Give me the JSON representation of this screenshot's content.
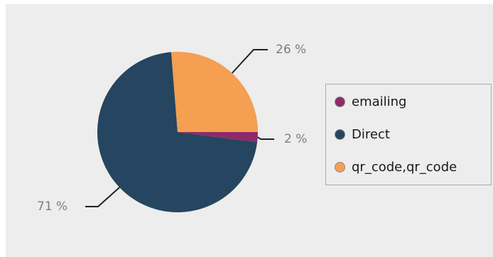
{
  "chart_data": {
    "type": "pie",
    "slices": [
      {
        "name": "emailing",
        "value": 2,
        "label": "2 %",
        "color": "#8e2a6b"
      },
      {
        "name": "Direct",
        "value": 71,
        "label": "71 %",
        "color": "#264560"
      },
      {
        "name": "qr_code,qr_code",
        "value": 26,
        "label": "26 %",
        "color": "#f49f52"
      }
    ],
    "legend_placement": "right"
  }
}
